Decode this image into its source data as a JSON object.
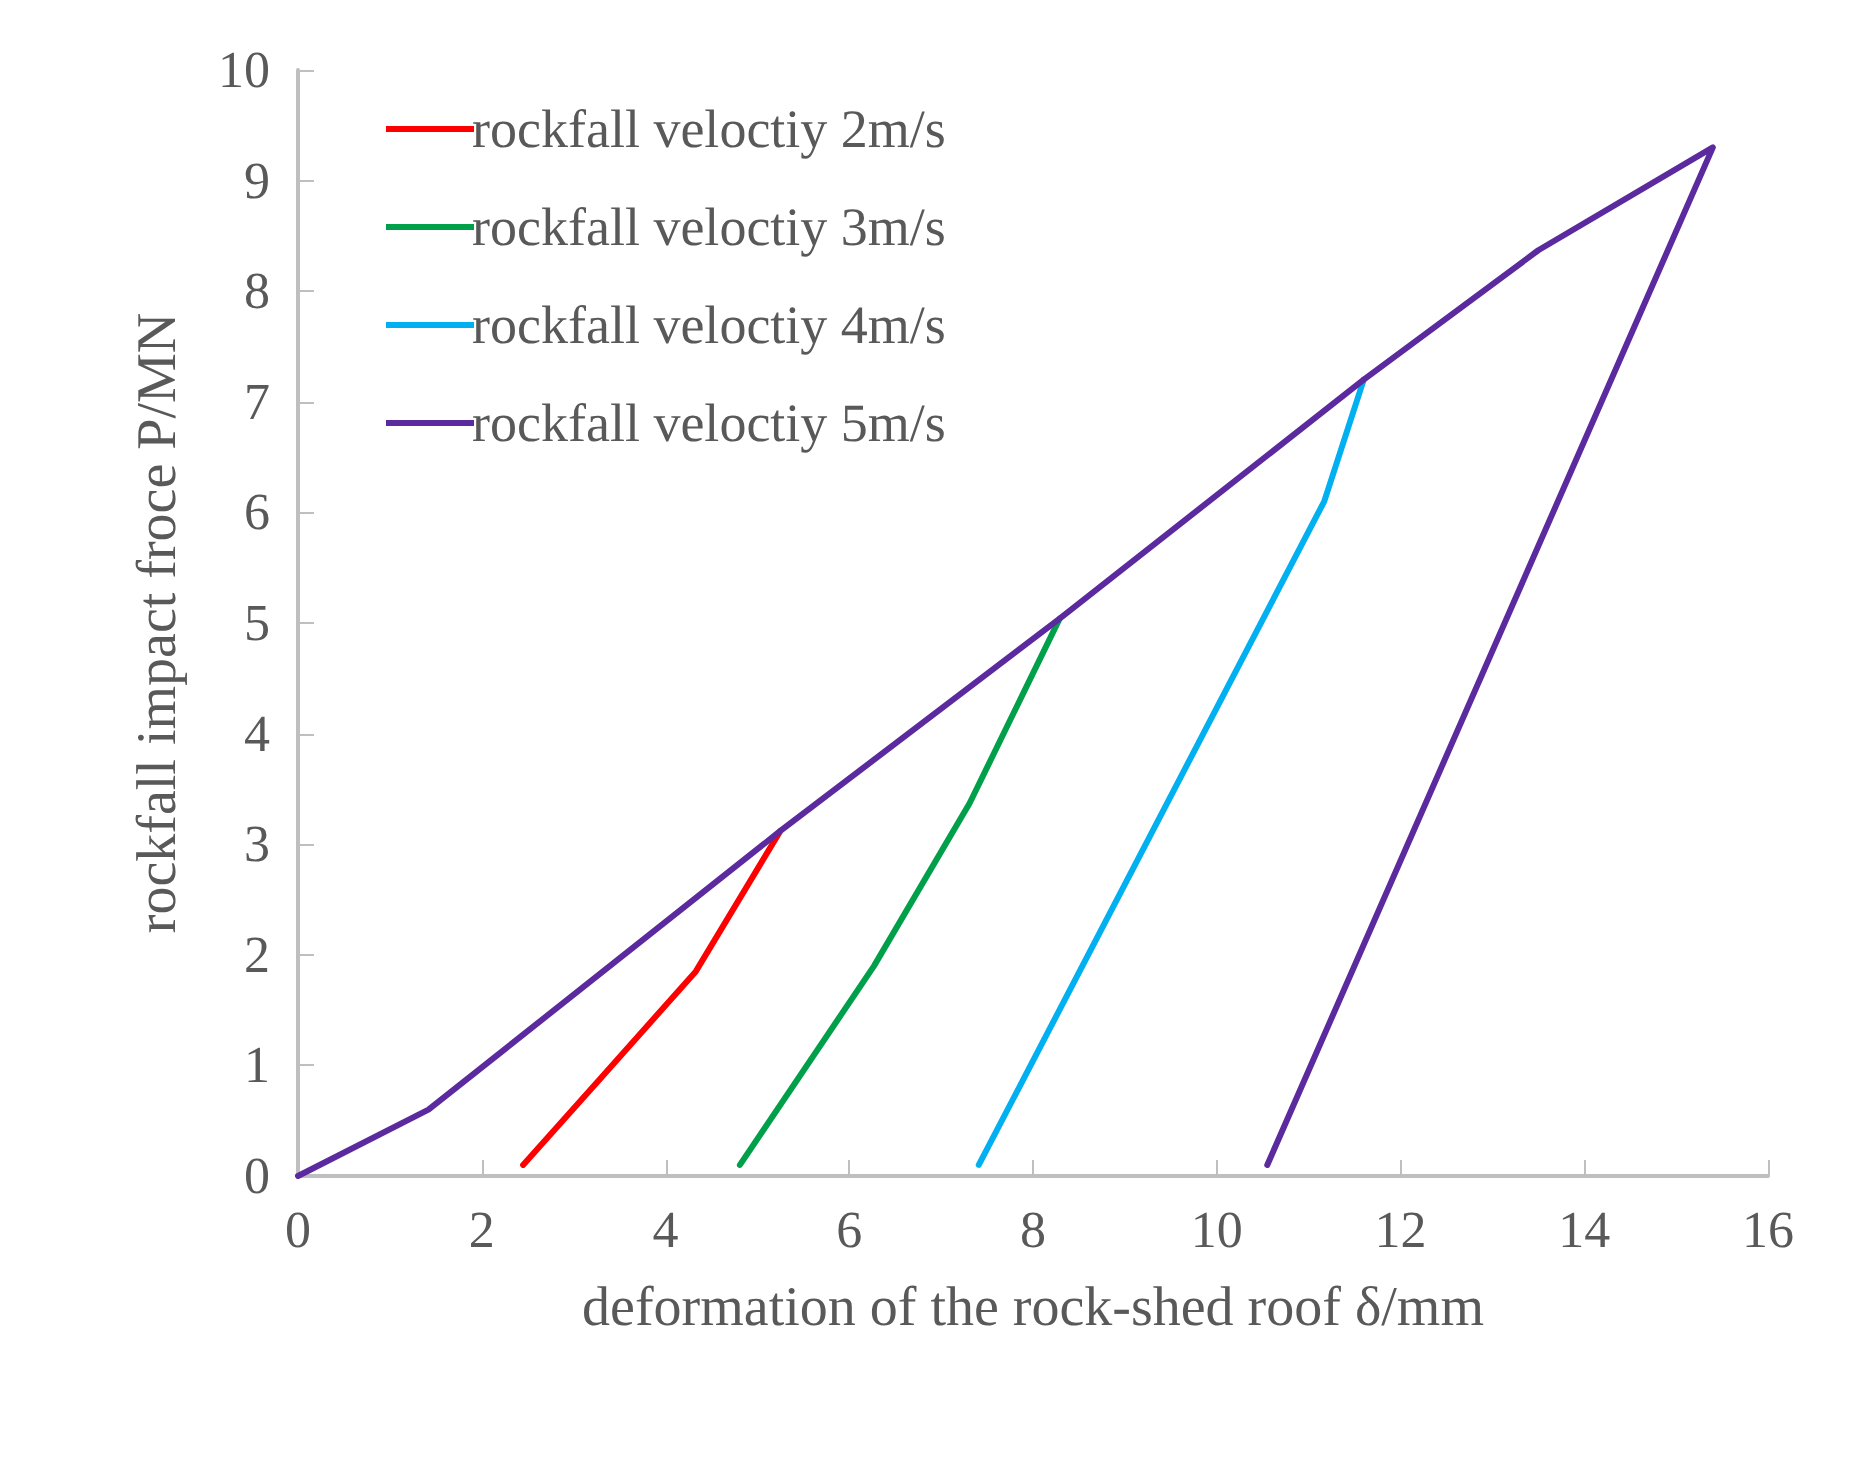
{
  "chart_data": {
    "type": "line",
    "xlabel": "deformation of the rock-shed roof δ/mm",
    "ylabel": "rockfall impact froce P/MN",
    "xlim": [
      0,
      16
    ],
    "xticks": [
      0,
      2,
      4,
      6,
      8,
      10,
      12,
      14,
      16
    ],
    "ylim": [
      0,
      10
    ],
    "yticks": [
      0,
      1,
      2,
      3,
      4,
      5,
      6,
      7,
      8,
      9,
      10
    ],
    "grid": false,
    "legend": "top left",
    "marker": "none",
    "line_style": "solid",
    "series": [
      {
        "name": "rockfall veloctiy 2m/s",
        "color": "#ff0000",
        "x": [
          5.25,
          4.33,
          3.28,
          2.45
        ],
        "values": [
          3.12,
          1.85,
          0.87,
          0.1
        ]
      },
      {
        "name": "rockfall veloctiy 3m/s",
        "color": "#00a04a",
        "x": [
          8.29,
          7.31,
          6.27,
          4.81
        ],
        "values": [
          5.04,
          3.37,
          1.9,
          0.1
        ]
      },
      {
        "name": "rockfall veloctiy 4m/s",
        "color": "#00b0f0",
        "x": [
          11.6,
          11.17,
          7.41
        ],
        "values": [
          7.2,
          6.1,
          0.1
        ]
      },
      {
        "name": "rockfall veloctiy 5m/s",
        "color": "#5b2a9e",
        "x": [
          0,
          1.42,
          5.25,
          8.29,
          11.6,
          13.5,
          15.4,
          10.55
        ],
        "values": [
          0,
          0.6,
          3.12,
          5.04,
          7.2,
          8.37,
          9.3,
          0.1
        ]
      }
    ]
  }
}
